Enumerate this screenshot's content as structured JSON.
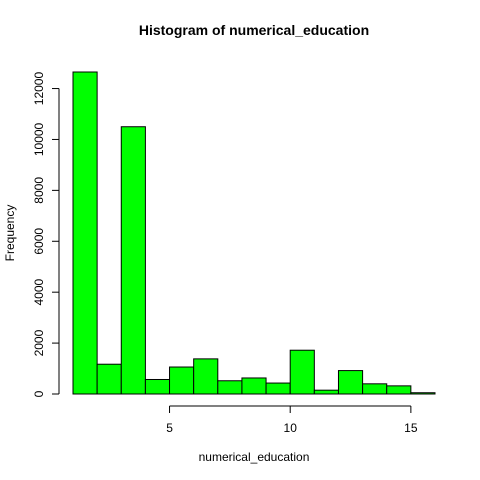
{
  "chart_data": {
    "type": "bar",
    "title": "Histogram of numerical_education",
    "xlabel": "numerical_education",
    "ylabel": "Frequency",
    "bar_color": "#00ff00",
    "border_color": "#000000",
    "bins": [
      {
        "x0": 1,
        "x1": 2,
        "count": 12650
      },
      {
        "x0": 2,
        "x1": 3,
        "count": 1170
      },
      {
        "x0": 3,
        "x1": 4,
        "count": 10500
      },
      {
        "x0": 4,
        "x1": 5,
        "count": 570
      },
      {
        "x0": 5,
        "x1": 6,
        "count": 1060
      },
      {
        "x0": 6,
        "x1": 7,
        "count": 1380
      },
      {
        "x0": 7,
        "x1": 8,
        "count": 520
      },
      {
        "x0": 8,
        "x1": 9,
        "count": 630
      },
      {
        "x0": 9,
        "x1": 10,
        "count": 430
      },
      {
        "x0": 10,
        "x1": 11,
        "count": 1720
      },
      {
        "x0": 11,
        "x1": 12,
        "count": 150
      },
      {
        "x0": 12,
        "x1": 13,
        "count": 920
      },
      {
        "x0": 13,
        "x1": 14,
        "count": 400
      },
      {
        "x0": 14,
        "x1": 15,
        "count": 320
      },
      {
        "x0": 15,
        "x1": 16,
        "count": 50
      }
    ],
    "xlim": [
      1,
      16
    ],
    "ylim": [
      0,
      12650
    ],
    "x_ticks": [
      5,
      10,
      15
    ],
    "y_ticks": [
      0,
      2000,
      4000,
      6000,
      8000,
      10000,
      12000
    ],
    "grid": false
  }
}
